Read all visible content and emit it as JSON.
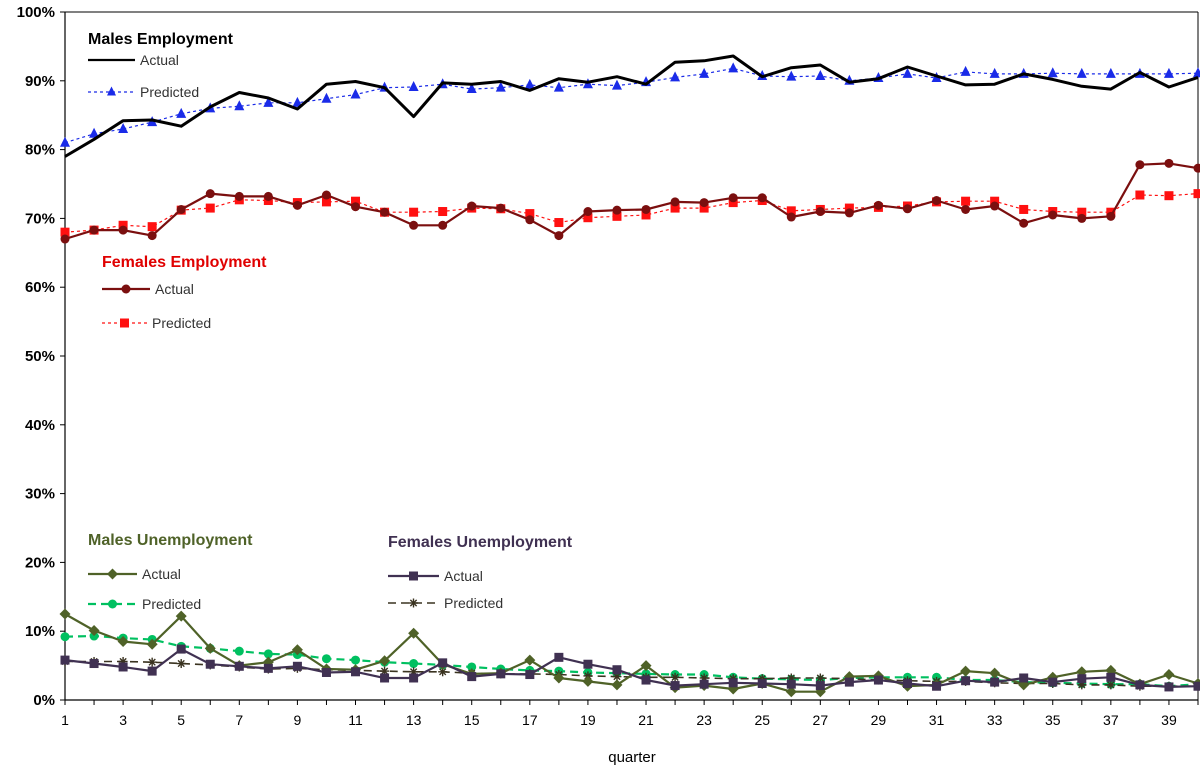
{
  "chart_data": {
    "type": "line",
    "xlabel": "quarter",
    "ylabel": "",
    "ylim": [
      0,
      100
    ],
    "xlim": [
      1,
      40
    ],
    "y_ticks": [
      "0%",
      "10%",
      "20%",
      "30%",
      "40%",
      "50%",
      "60%",
      "70%",
      "80%",
      "90%",
      "100%"
    ],
    "x_ticks": [
      "1",
      "3",
      "5",
      "7",
      "9",
      "11",
      "13",
      "15",
      "17",
      "19",
      "21",
      "23",
      "25",
      "27",
      "29",
      "31",
      "33",
      "35",
      "37",
      "39"
    ],
    "grid": false,
    "groups": [
      {
        "title": "Males Employment",
        "color": "#000000"
      },
      {
        "title": "Females Employment",
        "color": "#e00000"
      },
      {
        "title": "Males Unemployment",
        "color": "#4f6228"
      },
      {
        "title": "Females Unemployment",
        "color": "#403152"
      }
    ],
    "series": [
      {
        "group": 0,
        "name": "Actual",
        "color": "#000000",
        "marker": "none",
        "dash": "solid",
        "width": 3,
        "values": [
          79,
          81.5,
          84.2,
          84.3,
          83.4,
          86.2,
          88.3,
          87.5,
          85.9,
          89.5,
          89.9,
          89,
          84.8,
          89.7,
          89.5,
          89.9,
          88.6,
          90.3,
          89.8,
          90.6,
          89.5,
          92.7,
          92.9,
          93.6,
          90.6,
          91.9,
          92.3,
          89.8,
          90.3,
          92,
          90.7,
          89.4,
          89.5,
          91,
          90.2,
          89.2,
          88.8,
          91.2,
          89.1,
          90.5
        ]
      },
      {
        "group": 0,
        "name": "Predicted",
        "color": "#1a2be8",
        "marker": "triangle",
        "dash": "dotted",
        "width": 1.2,
        "values": [
          81,
          82.3,
          83,
          84,
          85.2,
          86,
          86.3,
          86.8,
          86.8,
          87.4,
          88,
          89,
          89.1,
          89.5,
          88.8,
          89,
          89.4,
          89,
          89.5,
          89.3,
          89.8,
          90.5,
          91,
          91.8,
          90.7,
          90.6,
          90.7,
          90,
          90.4,
          91,
          90.4,
          91.3,
          91,
          91,
          91.1,
          91,
          91,
          91,
          91,
          91.1
        ]
      },
      {
        "group": 1,
        "name": "Actual",
        "color": "#7b0f0f",
        "marker": "circle",
        "dash": "solid",
        "width": 2.2,
        "values": [
          67,
          68.3,
          68.3,
          67.5,
          71.3,
          73.6,
          73.2,
          73.2,
          71.9,
          73.4,
          71.7,
          70.9,
          69,
          69,
          71.8,
          71.5,
          69.8,
          67.5,
          71,
          71.2,
          71.3,
          72.4,
          72.3,
          73,
          73,
          70.2,
          71,
          70.8,
          71.9,
          71.4,
          72.6,
          71.3,
          71.8,
          69.3,
          70.5,
          70,
          70.3,
          77.8,
          78,
          77.3
        ]
      },
      {
        "group": 1,
        "name": "Predicted",
        "color": "#ff1010",
        "marker": "square",
        "dash": "dotted",
        "width": 1.2,
        "values": [
          68,
          68.3,
          69,
          68.8,
          71.2,
          71.5,
          72.7,
          72.6,
          72.3,
          72.4,
          72.5,
          70.9,
          70.9,
          71,
          71.5,
          71.4,
          70.7,
          69.4,
          70.1,
          70.3,
          70.5,
          71.5,
          71.5,
          72.3,
          72.6,
          71.1,
          71.3,
          71.5,
          71.6,
          71.8,
          72.4,
          72.5,
          72.5,
          71.3,
          71,
          70.9,
          70.9,
          73.4,
          73.3,
          73.6
        ]
      },
      {
        "group": 2,
        "name": "Actual",
        "color": "#4f6228",
        "marker": "diamond",
        "dash": "solid",
        "width": 2.2,
        "values": [
          12.5,
          10.1,
          8.5,
          8.1,
          12.2,
          7.5,
          5,
          5.5,
          7.3,
          4.5,
          4.4,
          5.7,
          9.7,
          5.2,
          3.8,
          3.9,
          5.8,
          3.2,
          2.7,
          2.2,
          5,
          1.8,
          2.1,
          1.6,
          2.4,
          1.2,
          1.2,
          3.4,
          3.5,
          2,
          2.2,
          4.2,
          3.9,
          2.2,
          3.3,
          4.1,
          4.3,
          2.3,
          3.7,
          2.4
        ]
      },
      {
        "group": 2,
        "name": "Predicted",
        "color": "#00c060",
        "marker": "circle",
        "dash": "dashed",
        "width": 2.2,
        "values": [
          9.2,
          9.3,
          9,
          8.8,
          7.8,
          7.5,
          7.1,
          6.7,
          6.6,
          6,
          5.8,
          5.5,
          5.3,
          5.1,
          4.8,
          4.5,
          4.3,
          4.2,
          4,
          3.9,
          3.8,
          3.7,
          3.7,
          3.3,
          3.1,
          3,
          2.9,
          3.2,
          3.3,
          3.3,
          3.3,
          2.9,
          2.9,
          2.6,
          2.5,
          2.4,
          2.3,
          2.3,
          2,
          2.3
        ]
      },
      {
        "group": 3,
        "name": "Actual",
        "color": "#403152",
        "marker": "square",
        "dash": "solid",
        "width": 2.2,
        "values": [
          5.8,
          5.3,
          4.8,
          4.2,
          7.4,
          5.2,
          4.9,
          4.6,
          4.9,
          4,
          4.1,
          3.2,
          3.2,
          5.4,
          3.4,
          3.8,
          3.7,
          6.2,
          5.2,
          4.4,
          2.9,
          2.1,
          2.3,
          2.5,
          2.4,
          2.3,
          2.1,
          2.6,
          2.9,
          2.4,
          2,
          2.8,
          2.6,
          3.2,
          2.6,
          3.1,
          3.3,
          2.2,
          1.9,
          2
        ]
      },
      {
        "group": 3,
        "name": "Predicted",
        "color": "#3a3320",
        "marker": "star",
        "dash": "dashed",
        "width": 1.6,
        "values": [
          5.6,
          5.6,
          5.6,
          5.5,
          5.3,
          5.1,
          4.8,
          4.5,
          4.6,
          4.4,
          4.3,
          4.2,
          4.1,
          4.1,
          3.9,
          3.8,
          3.8,
          3.7,
          3.5,
          3.4,
          3.3,
          3.3,
          3.2,
          3.1,
          3.1,
          3.2,
          3.2,
          3.1,
          2.9,
          2.8,
          2.7,
          2.7,
          2.5,
          2.4,
          2.4,
          2.2,
          2.2,
          2,
          2,
          2
        ]
      }
    ]
  }
}
